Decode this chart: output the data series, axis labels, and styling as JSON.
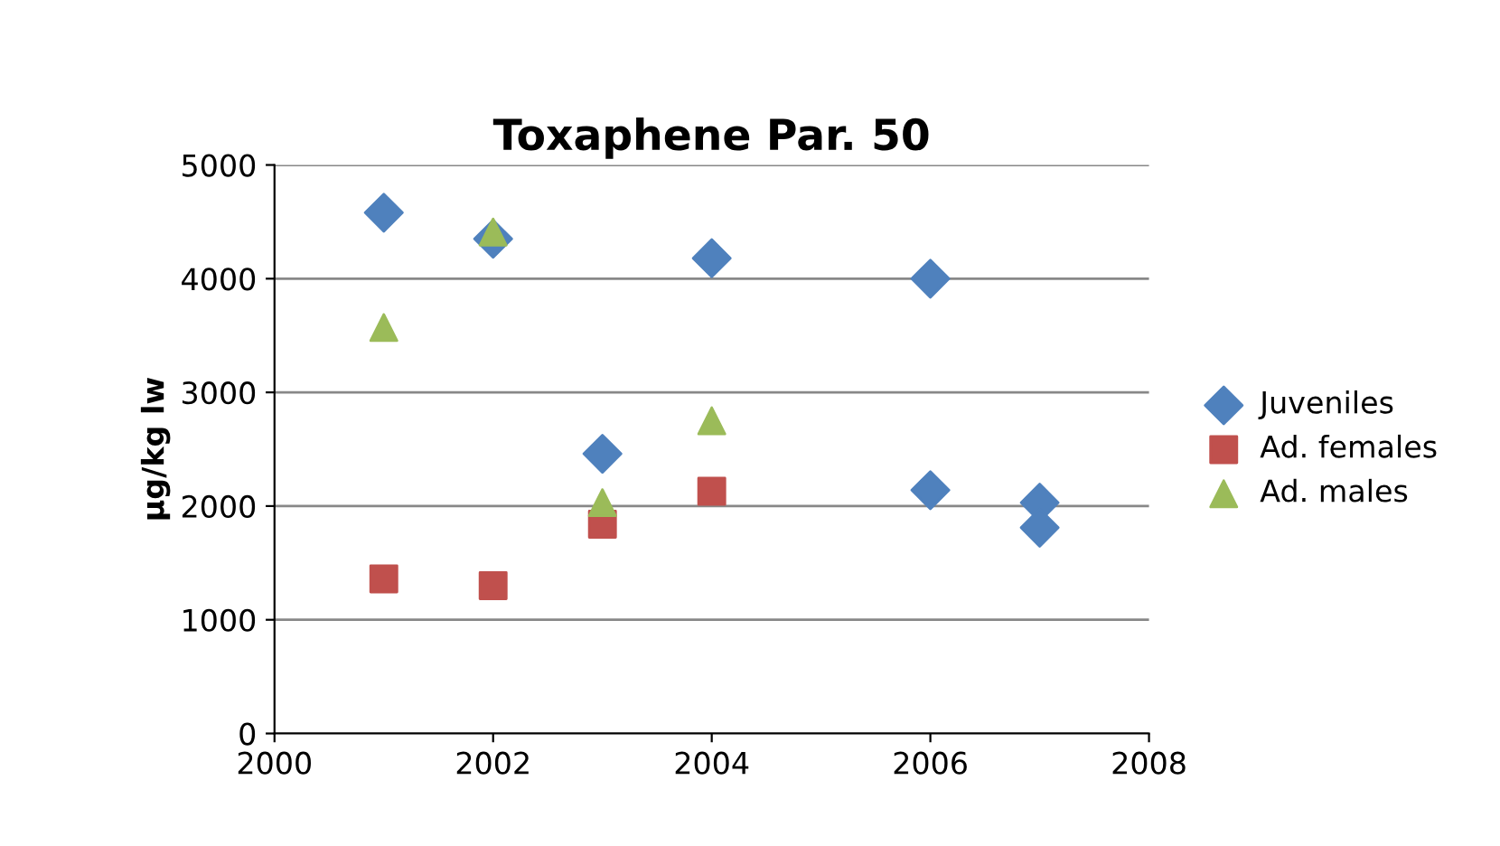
{
  "chart_data": {
    "type": "scatter",
    "title": "Toxaphene Par. 50",
    "ylabel": "µg/kg lw",
    "xlim": [
      2000,
      2008
    ],
    "xticks": [
      2000,
      2002,
      2004,
      2006,
      2008
    ],
    "ylim": [
      0,
      5000
    ],
    "yticks": [
      0,
      1000,
      2000,
      3000,
      4000,
      5000
    ],
    "grid": "y",
    "legend": "right",
    "series": [
      {
        "name": "Juveniles",
        "color": "#4f81bd",
        "marker": "diamond",
        "x": [
          2001,
          2002,
          2003,
          2004,
          2006,
          2006,
          2007,
          2007
        ],
        "values": [
          4580,
          4350,
          2460,
          4180,
          4000,
          2140,
          2030,
          1810
        ]
      },
      {
        "name": "Ad. females",
        "color": "#c0504d",
        "marker": "square",
        "x": [
          2001,
          2002,
          2003,
          2004
        ],
        "values": [
          1360,
          1300,
          1840,
          2130
        ]
      },
      {
        "name": "Ad. males",
        "color": "#9bbb59",
        "marker": "triangle",
        "x": [
          2001,
          2002,
          2003,
          2004
        ],
        "values": [
          3570,
          4410,
          2030,
          2750
        ]
      }
    ]
  }
}
